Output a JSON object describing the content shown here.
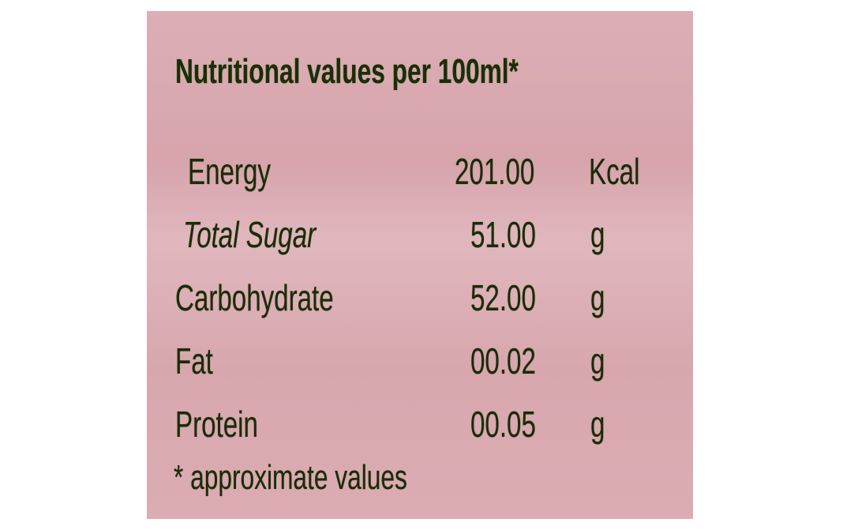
{
  "title": "Nutritional values per 100ml*",
  "rows": [
    {
      "name": "Energy",
      "value": "201.00",
      "unit": "Kcal"
    },
    {
      "name": "Total Sugar",
      "value": "51.00",
      "unit": "g"
    },
    {
      "name": "Carbohydrate",
      "value": "52.00",
      "unit": "g"
    },
    {
      "name": "Fat",
      "value": "00.02",
      "unit": "g"
    },
    {
      "name": "Protein",
      "value": "00.05",
      "unit": "g"
    }
  ],
  "footnote": "* approximate values",
  "colors": {
    "background": "#d9a9b0",
    "text": "#1c2a0c"
  }
}
